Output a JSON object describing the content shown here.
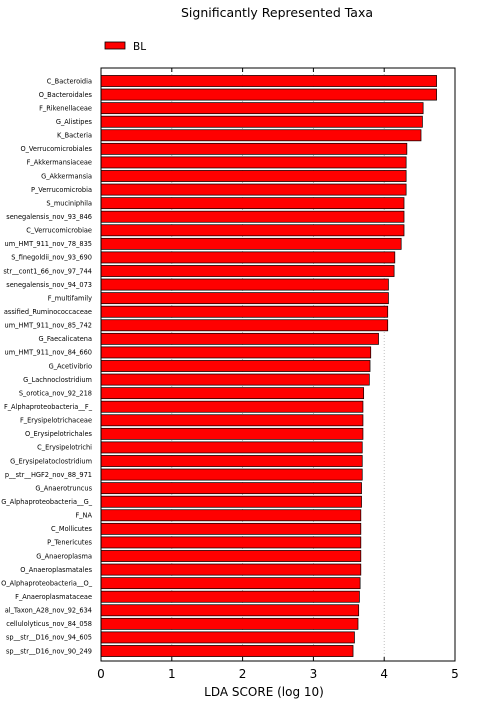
{
  "chart_data": {
    "type": "bar",
    "orientation": "horizontal",
    "title": "Significantly Represented Taxa",
    "xlabel": "LDA SCORE (log 10)",
    "ylabel": "",
    "xlim": [
      0,
      5
    ],
    "xticks": [
      "0",
      "1",
      "2",
      "3",
      "4",
      "5"
    ],
    "grid": "vertical-dotted",
    "legend_position": "top-left",
    "bar_color": "#ff0000",
    "edge_color": "#000000",
    "series": [
      {
        "name": "BL",
        "color": "#ff0000",
        "categories": [
          "C_Bacteroidia",
          "O_Bacteroidales",
          "F_Rikenellaceae",
          "G_Alistipes",
          "K_Bacteria",
          "O_Verrucomicrobiales",
          "F_Akkermansiaceae",
          "G_Akkermansia",
          "P_Verrucomicrobia",
          "S_muciniphila",
          "senegalensis_nov_93_846",
          "C_Verrucomicrobiae",
          "um_HMT_911_nov_78_835",
          "S_finegoldii_nov_93_690",
          "str__cont1_66_nov_97_744",
          "senegalensis_nov_94_073",
          "F_multifamily",
          "assified_Ruminococcaceae",
          "um_HMT_911_nov_85_742",
          "G_Faecalicatena",
          "um_HMT_911_nov_84_660",
          "G_Acetivibrio",
          "G_Lachnoclostridium",
          "S_orotica_nov_92_218",
          "F_Alphaproteobacteria__F_",
          "F_Erysipelotrichaceae",
          "O_Erysipelotrichales",
          "C_Erysipelotrichi",
          "G_Erysipelatoclostridium",
          "p__str__HGF2_nov_88_971",
          "G_Anaerotruncus",
          "G_Alphaproteobacteria__G_",
          "F_NA",
          "C_Mollicutes",
          "P_Tenericutes",
          "G_Anaeroplasma",
          "O_Anaeroplasmatales",
          "O_Alphaproteobacteria__O_",
          "F_Anaeroplasmataceae",
          "al_Taxon_A28_nov_92_634",
          "cellulolyticus_nov_84_058",
          "sp__str__D16_nov_94_605",
          "sp__str__D16_nov_90_249"
        ],
        "values": [
          4.74,
          4.74,
          4.55,
          4.54,
          4.52,
          4.32,
          4.31,
          4.31,
          4.31,
          4.28,
          4.28,
          4.28,
          4.24,
          4.15,
          4.14,
          4.06,
          4.06,
          4.05,
          4.05,
          3.92,
          3.81,
          3.8,
          3.79,
          3.71,
          3.7,
          3.7,
          3.7,
          3.69,
          3.69,
          3.69,
          3.68,
          3.68,
          3.67,
          3.67,
          3.67,
          3.67,
          3.67,
          3.66,
          3.65,
          3.64,
          3.63,
          3.58,
          3.56
        ]
      }
    ]
  }
}
